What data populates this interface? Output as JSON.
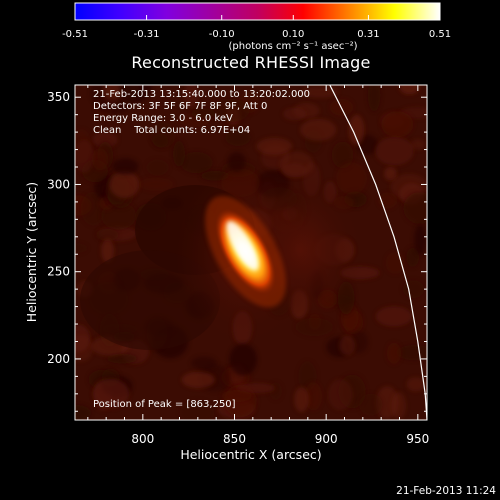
{
  "colorbar": {
    "tick_labels": [
      "-0.51",
      "-0.31",
      "-0.10",
      "0.10",
      "0.31",
      "0.51"
    ],
    "tick_values": [
      -0.51,
      -0.31,
      -0.1,
      0.1,
      0.31,
      0.51
    ],
    "range": [
      -0.51,
      0.51
    ],
    "units_label": "(photons cm⁻² s⁻¹ asec⁻²)",
    "colormap": [
      "#0000ff",
      "#4000ff",
      "#8000e0",
      "#a000a0",
      "#c00060",
      "#ff0000",
      "#ff8000",
      "#ffff00",
      "#ffffff"
    ]
  },
  "plot": {
    "title": "Reconstructed RHESSI Image",
    "info_lines": [
      "21-Feb-2013 13:15:40.000 to 13:20:02.000",
      "Detectors: 3F 5F 6F 7F 8F 9F, Att 0",
      "Energy Range: 3.0 - 6.0 keV",
      "Clean    Total counts: 6.97E+04"
    ],
    "peak_label": "Position of Peak = [863,250]",
    "footer_timestamp": "21-Feb-2013 11:24"
  },
  "chart_data": {
    "type": "heatmap",
    "title": "Reconstructed RHESSI Image",
    "xlabel": "Heliocentric X (arcsec)",
    "ylabel": "Heliocentric Y (arcsec)",
    "xlim": [
      763,
      955
    ],
    "ylim": [
      165,
      357
    ],
    "x_ticks": [
      800,
      850,
      900,
      950
    ],
    "y_ticks": [
      200,
      250,
      300,
      350
    ],
    "x_tick_labels": [
      "800",
      "850",
      "900",
      "950"
    ],
    "y_tick_labels": [
      "200",
      "250",
      "300",
      "350"
    ],
    "peak": {
      "x": 863,
      "y": 250
    },
    "source_extent": {
      "x": [
        840,
        872
      ],
      "y": [
        238,
        285
      ]
    },
    "limb_curve": [
      [
        902,
        357
      ],
      [
        915,
        330
      ],
      [
        927,
        300
      ],
      [
        937,
        270
      ],
      [
        945,
        240
      ],
      [
        950,
        210
      ],
      [
        954,
        180
      ],
      [
        955,
        165
      ]
    ]
  }
}
